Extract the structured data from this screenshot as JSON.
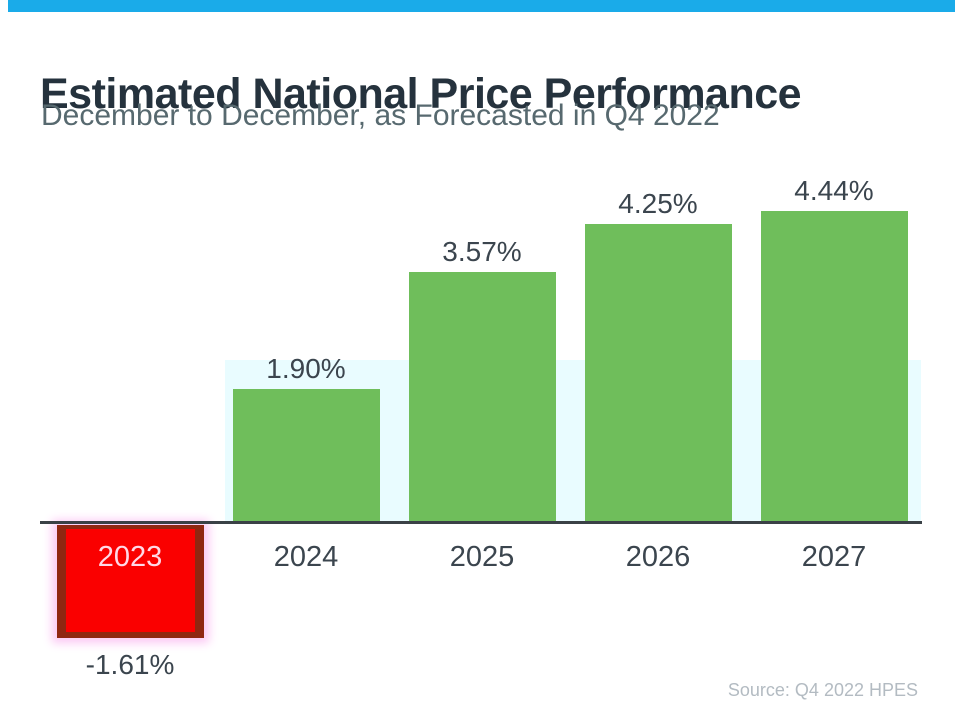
{
  "header": {
    "title": "Estimated National Price Performance",
    "subtitle": "December to December, as Forecasted in Q4 2022"
  },
  "chart_data": {
    "type": "bar",
    "title": "Estimated National Price Performance",
    "subtitle": "December to December, as Forecasted in Q4 2022",
    "categories": [
      "2023",
      "2024",
      "2025",
      "2026",
      "2027"
    ],
    "values": [
      -1.61,
      1.9,
      3.57,
      4.25,
      4.44
    ],
    "value_labels": [
      "-1.61%",
      "1.90%",
      "3.57%",
      "4.25%",
      "4.44%"
    ],
    "xlabel": "",
    "ylabel": "",
    "ylim": [
      -2,
      5
    ],
    "grid": "off",
    "legend": "none",
    "baseline": "zero, horizontal axis line only (no y-axis, no ticks)",
    "colors": {
      "positive_bar": "#6FBE5B",
      "negative_bar": "#FA0000",
      "negative_bar_border": "#8F2711",
      "negative_bar_glow": "#FBC8F4",
      "negative_year_text": "#FFD8E6",
      "label_text": "#3B454E",
      "accent_top_bar": "#1AABE9",
      "highlight_band": "#E9FCFF"
    }
  },
  "footer": {
    "source": "Source: Q4 2022 HPES"
  }
}
